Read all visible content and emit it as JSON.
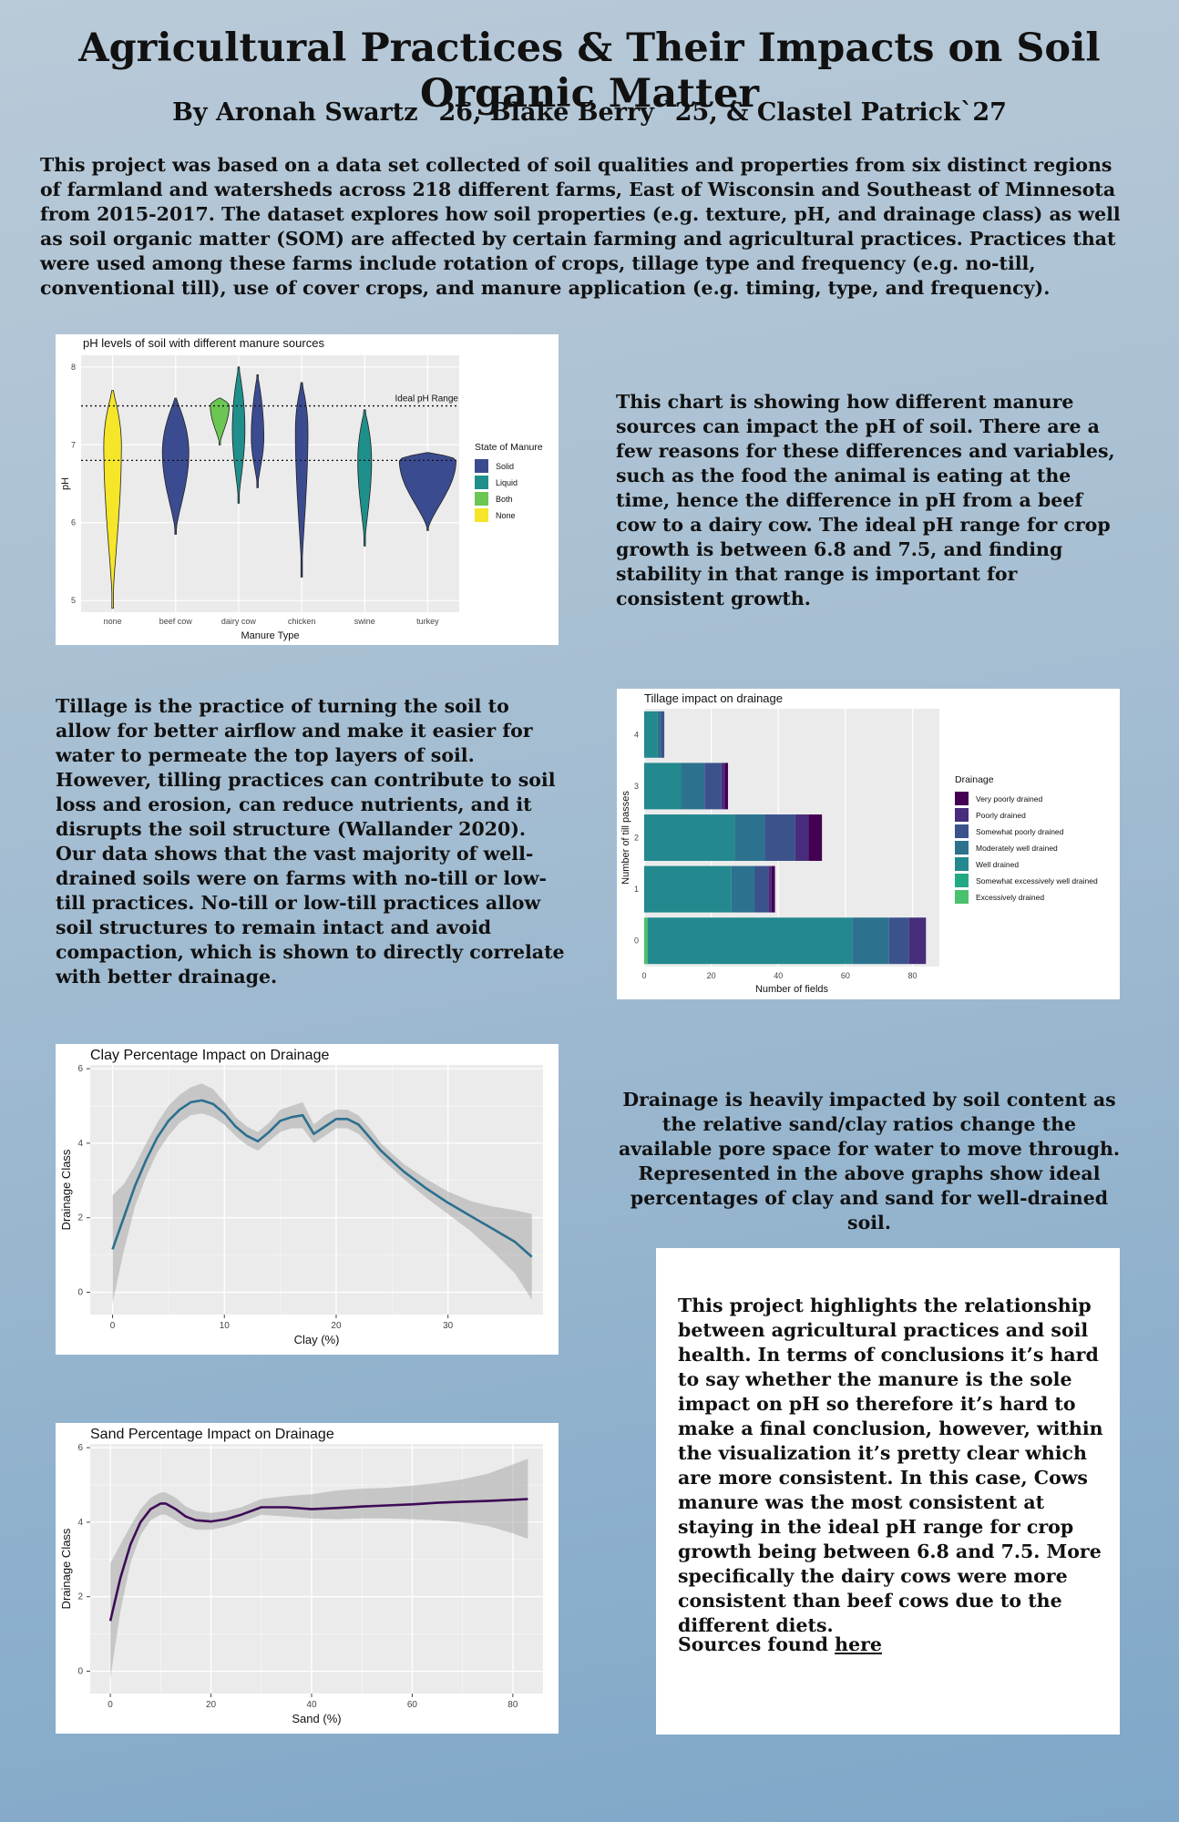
{
  "header": {
    "title": "Agricultural Practices & Their Impacts on Soil Organic Matter",
    "authors": "By Aronah Swartz `26, Blake Berry `25, & Clastel Patrick`27"
  },
  "intro": "This project was based on a data set collected of soil qualities and properties from six distinct regions of farmland and watersheds across 218 different farms, East of Wisconsin and Southeast of Minnesota from 2015-2017. The dataset explores how soil properties (e.g. texture, pH, and drainage class) as well as soil organic matter (SOM) are affected by certain farming and agricultural practices. Practices that were used among these farms include rotation of crops, tillage type and frequency (e.g. no-till, conventional till), use of cover crops, and manure application (e.g. timing, type, and frequency).",
  "ph_text": "This chart is showing how different manure sources can impact the pH of soil. There are a few reasons for these differences and variables, such as the food the animal is eating at the time, hence the difference in pH from a beef cow to a dairy cow. The ideal pH range for crop growth is between 6.8 and 7.5, and finding stability in that range is important for consistent growth.",
  "tillage_text": "Tillage is the practice of turning the soil to allow for better airflow and make it easier for water to permeate the top layers of soil. However, tilling practices can contribute to soil loss and erosion, can reduce nutrients, and it disrupts the soil structure (Wallander 2020). Our data shows that the vast majority of well-drained soils were on farms with no-till or low-till practices. No-till or low-till practices allow soil structures to remain intact and avoid compaction, which is shown to directly correlate with better drainage.",
  "drainage_text": "Drainage is heavily impacted by soil content as the relative sand/clay ratios change the available pore space for water to move through. Represented in the above graphs show ideal percentages of clay and sand for well-drained soil.",
  "conclusion": {
    "text": "This project highlights the relationship between agricultural practices and soil health.  In terms of conclusions it’s hard to say whether the manure is the sole impact on pH so therefore it’s hard to make a final conclusion, however, within the visualization it’s pretty clear which are more consistent. In this case, Cows manure was the most consistent at staying in the ideal pH range for crop growth being between 6.8 and 7.5. More specifically the dairy cows were more consistent than beef cows due to the different diets.",
    "sources_prefix": "Sources found ",
    "sources_link": "here"
  },
  "chart_data": [
    {
      "type": "violin",
      "title": "pH levels of soil with different manure sources",
      "xlabel": "Manure Type",
      "ylabel": "pH",
      "categories": [
        "none",
        "beef cow",
        "dairy cow",
        "chicken",
        "swine",
        "turkey"
      ],
      "ylim": [
        4.85,
        8.15
      ],
      "yticks": [
        5,
        6,
        7,
        8
      ],
      "ideal_range": [
        6.8,
        7.5
      ],
      "annotation": "Ideal pH Range",
      "legend_title": "State of Manure",
      "legend": [
        {
          "name": "Solid",
          "color": "#3b4b8f"
        },
        {
          "name": "Liquid",
          "color": "#1f8f8b"
        },
        {
          "name": "Both",
          "color": "#6cc653"
        },
        {
          "name": "None",
          "color": "#f5e62a"
        }
      ],
      "violins": [
        {
          "category": "none",
          "state": "None",
          "offset": 0,
          "min": 4.9,
          "max": 7.7,
          "mode": 7.0,
          "width": 0.28
        },
        {
          "category": "beef cow",
          "state": "Solid",
          "offset": 0,
          "min": 5.85,
          "max": 7.6,
          "mode": 6.9,
          "width": 0.42
        },
        {
          "category": "dairy cow",
          "state": "Both",
          "offset": -0.3,
          "min": 7.0,
          "max": 7.6,
          "mode": 7.5,
          "width": 0.3
        },
        {
          "category": "dairy cow",
          "state": "Liquid",
          "offset": 0,
          "min": 6.25,
          "max": 8.0,
          "mode": 7.2,
          "width": 0.2
        },
        {
          "category": "dairy cow",
          "state": "Solid",
          "offset": 0.3,
          "min": 6.45,
          "max": 7.9,
          "mode": 7.1,
          "width": 0.2
        },
        {
          "category": "chicken",
          "state": "Solid",
          "offset": 0,
          "min": 5.3,
          "max": 7.8,
          "mode": 7.2,
          "width": 0.2
        },
        {
          "category": "swine",
          "state": "Liquid",
          "offset": 0,
          "min": 5.7,
          "max": 7.45,
          "mode": 6.8,
          "width": 0.22
        },
        {
          "category": "turkey",
          "state": "Solid",
          "offset": 0,
          "min": 5.9,
          "max": 6.9,
          "mode": 6.8,
          "width": 0.9
        }
      ]
    },
    {
      "type": "bar",
      "orientation": "horizontal",
      "stacked": true,
      "title": "Tillage impact on drainage",
      "xlabel": "Number of fields",
      "ylabel": "Number of till passes",
      "categories": [
        0,
        1,
        2,
        3,
        4
      ],
      "xlim": [
        0,
        88
      ],
      "xticks": [
        0,
        20,
        40,
        60,
        80
      ],
      "legend_title": "Drainage",
      "series": [
        {
          "name": "Excessively drained",
          "color": "#4ac16d",
          "values": [
            1,
            0,
            0,
            0,
            0
          ]
        },
        {
          "name": "Somewhat excessively well drained",
          "color": "#23a884",
          "values": [
            0,
            0,
            0,
            0,
            0
          ]
        },
        {
          "name": "Well drained",
          "color": "#23898e",
          "values": [
            61,
            26,
            27,
            11,
            4
          ]
        },
        {
          "name": "Moderately well drained",
          "color": "#2c728e",
          "values": [
            11,
            7,
            9,
            7,
            1
          ]
        },
        {
          "name": "Somewhat poorly drained",
          "color": "#3b528b",
          "values": [
            6,
            4,
            9,
            5,
            1
          ]
        },
        {
          "name": "Poorly drained",
          "color": "#472d7b",
          "values": [
            5,
            1,
            4,
            1,
            0
          ]
        },
        {
          "name": "Very poorly drained",
          "color": "#440154",
          "values": [
            0,
            1,
            4,
            1,
            0
          ]
        }
      ]
    },
    {
      "type": "line",
      "smoothed": true,
      "title": "Clay Percentage Impact on Drainage",
      "xlabel": "Clay (%)",
      "ylabel": "Drainage Class",
      "xlim": [
        -2,
        38.5
      ],
      "ylim": [
        -0.6,
        6.1
      ],
      "xticks": [
        0,
        10,
        20,
        30
      ],
      "yticks": [
        0,
        2,
        4,
        6
      ],
      "color": "#2c6f8e",
      "x": [
        0,
        1,
        2,
        3,
        4,
        5,
        6,
        7,
        8,
        9,
        10,
        11,
        12,
        13,
        14,
        15,
        16,
        17,
        18,
        19,
        20,
        21,
        22,
        23,
        24,
        26,
        28,
        30,
        32,
        34,
        36,
        37.5
      ],
      "y": [
        1.15,
        2.0,
        2.85,
        3.55,
        4.15,
        4.6,
        4.9,
        5.1,
        5.15,
        5.05,
        4.8,
        4.45,
        4.2,
        4.05,
        4.3,
        4.6,
        4.7,
        4.75,
        4.25,
        4.45,
        4.65,
        4.65,
        4.5,
        4.15,
        3.8,
        3.25,
        2.8,
        2.4,
        2.05,
        1.7,
        1.35,
        0.95
      ],
      "lower": [
        -0.3,
        1.1,
        2.3,
        3.1,
        3.75,
        4.2,
        4.55,
        4.75,
        4.8,
        4.7,
        4.5,
        4.2,
        3.95,
        3.8,
        4.05,
        4.3,
        4.4,
        4.4,
        4.0,
        4.2,
        4.4,
        4.4,
        4.25,
        3.95,
        3.6,
        3.05,
        2.55,
        2.1,
        1.65,
        1.1,
        0.5,
        -0.2
      ],
      "upper": [
        2.6,
        2.9,
        3.4,
        4.0,
        4.55,
        5.0,
        5.3,
        5.5,
        5.6,
        5.45,
        5.1,
        4.7,
        4.45,
        4.3,
        4.55,
        4.9,
        5.0,
        5.1,
        4.5,
        4.75,
        4.9,
        4.9,
        4.75,
        4.4,
        4.0,
        3.45,
        3.05,
        2.7,
        2.45,
        2.3,
        2.2,
        2.1
      ]
    },
    {
      "type": "line",
      "smoothed": true,
      "title": "Sand Percentage Impact on Drainage",
      "xlabel": "Sand (%)",
      "ylabel": "Drainage Class",
      "xlim": [
        -4,
        86
      ],
      "ylim": [
        -0.6,
        6.1
      ],
      "xticks": [
        0,
        20,
        40,
        60,
        80
      ],
      "yticks": [
        0,
        2,
        4,
        6
      ],
      "color": "#3e0b57",
      "x": [
        0,
        2,
        4,
        6,
        8,
        10,
        11,
        13,
        15,
        17,
        20,
        23,
        26,
        30,
        35,
        40,
        45,
        50,
        55,
        60,
        65,
        70,
        75,
        80,
        83
      ],
      "y": [
        1.35,
        2.5,
        3.4,
        4.0,
        4.35,
        4.5,
        4.5,
        4.35,
        4.15,
        4.05,
        4.02,
        4.08,
        4.2,
        4.4,
        4.4,
        4.35,
        4.38,
        4.42,
        4.45,
        4.48,
        4.52,
        4.55,
        4.57,
        4.6,
        4.62
      ],
      "lower": [
        -0.2,
        1.6,
        2.9,
        3.65,
        4.05,
        4.2,
        4.2,
        4.05,
        3.88,
        3.8,
        3.8,
        3.88,
        4.0,
        4.2,
        4.15,
        4.1,
        4.08,
        4.1,
        4.1,
        4.08,
        4.05,
        4.0,
        3.9,
        3.7,
        3.55
      ],
      "upper": [
        2.9,
        3.4,
        3.9,
        4.35,
        4.65,
        4.8,
        4.8,
        4.65,
        4.42,
        4.3,
        4.25,
        4.3,
        4.4,
        4.62,
        4.7,
        4.75,
        4.85,
        4.9,
        4.92,
        4.98,
        5.05,
        5.15,
        5.3,
        5.55,
        5.7
      ]
    }
  ]
}
